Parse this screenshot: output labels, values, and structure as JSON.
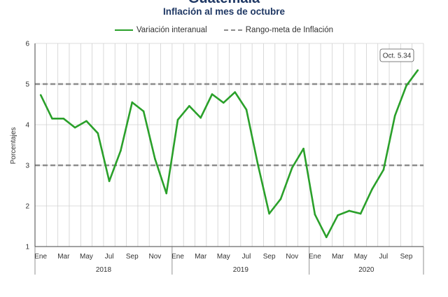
{
  "header": {
    "title": "Guatemala",
    "subtitle": "Inflación al mes de octubre"
  },
  "legend": {
    "series_label": "Variación interanual",
    "band_label": "Rango-meta de Inflación"
  },
  "callout": {
    "text": "Oct. 5.34"
  },
  "colors": {
    "series": "#2aa02a",
    "band": "#8c8c8c",
    "grid": "#d0d0d0"
  },
  "chart_data": {
    "type": "line",
    "title": "Inflación al mes de octubre",
    "ylabel": "Porcentajes",
    "ylim": [
      1,
      6
    ],
    "yticks": [
      1,
      2,
      3,
      4,
      5,
      6
    ],
    "grid": true,
    "legend_position": "top",
    "x": [
      "2018-01",
      "2018-02",
      "2018-03",
      "2018-04",
      "2018-05",
      "2018-06",
      "2018-07",
      "2018-08",
      "2018-09",
      "2018-10",
      "2018-11",
      "2018-12",
      "2019-01",
      "2019-02",
      "2019-03",
      "2019-04",
      "2019-05",
      "2019-06",
      "2019-07",
      "2019-08",
      "2019-09",
      "2019-10",
      "2019-11",
      "2019-12",
      "2020-01",
      "2020-02",
      "2020-03",
      "2020-04",
      "2020-05",
      "2020-06",
      "2020-07",
      "2020-08",
      "2020-09",
      "2020-10"
    ],
    "month_labels": [
      "Ene",
      "",
      "Mar",
      "",
      "May",
      "",
      "Jul",
      "",
      "Sep",
      "",
      "Nov",
      "",
      "Ene",
      "",
      "Mar",
      "",
      "May",
      "",
      "Jul",
      "",
      "Sep",
      "",
      "Nov",
      "",
      "Ene",
      "",
      "Mar",
      "",
      "May",
      "",
      "Jul",
      "",
      "Sep",
      ""
    ],
    "year_labels": [
      "2018",
      "2019",
      "2020"
    ],
    "series": [
      {
        "name": "Variación interanual",
        "values": [
          4.73,
          4.15,
          4.15,
          3.93,
          4.09,
          3.79,
          2.61,
          3.36,
          4.55,
          4.33,
          3.16,
          2.31,
          4.12,
          4.46,
          4.17,
          4.75,
          4.54,
          4.8,
          4.37,
          3.03,
          1.81,
          2.17,
          2.94,
          3.41,
          1.79,
          1.23,
          1.77,
          1.88,
          1.81,
          2.41,
          2.89,
          4.22,
          4.96,
          5.34
        ]
      }
    ],
    "target_band": {
      "name": "Rango-meta de Inflación",
      "lower": 3,
      "upper": 5
    }
  }
}
